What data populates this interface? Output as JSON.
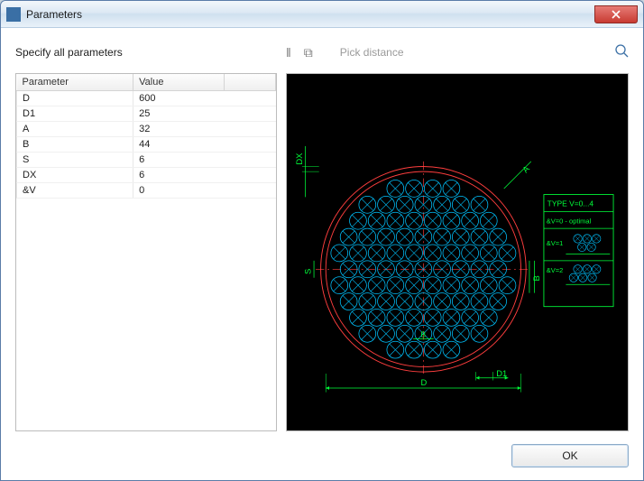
{
  "window": {
    "title": "Parameters"
  },
  "toolbar": {
    "label": "Specify all parameters",
    "pick_label": "Pick distance"
  },
  "table": {
    "headers": {
      "param": "Parameter",
      "value": "Value"
    },
    "rows": [
      {
        "param": "D",
        "value": "600"
      },
      {
        "param": "D1",
        "value": "25"
      },
      {
        "param": "A",
        "value": "32"
      },
      {
        "param": "B",
        "value": "44"
      },
      {
        "param": "S",
        "value": "6"
      },
      {
        "param": "DX",
        "value": "6"
      },
      {
        "param": "&V",
        "value": "0"
      }
    ]
  },
  "preview": {
    "background": "#000000",
    "colors": {
      "outer_ring": "#ff3e3e",
      "circles": "#00c3ff",
      "dims": "#00ff3a",
      "text": "#00ff3a",
      "centerline": "#ff3e3e"
    },
    "dim_labels": {
      "D": "D",
      "DX": "DX",
      "A": "A",
      "B": "B",
      "S": "S",
      "D1": "D1",
      "Bdim": "B"
    },
    "legend": {
      "title": "TYPE  V=0...4",
      "rows": [
        {
          "label": "&V=0 - optimal"
        },
        {
          "label": "&V=1"
        },
        {
          "label": "&V=2"
        }
      ]
    }
  },
  "buttons": {
    "ok": "OK"
  }
}
